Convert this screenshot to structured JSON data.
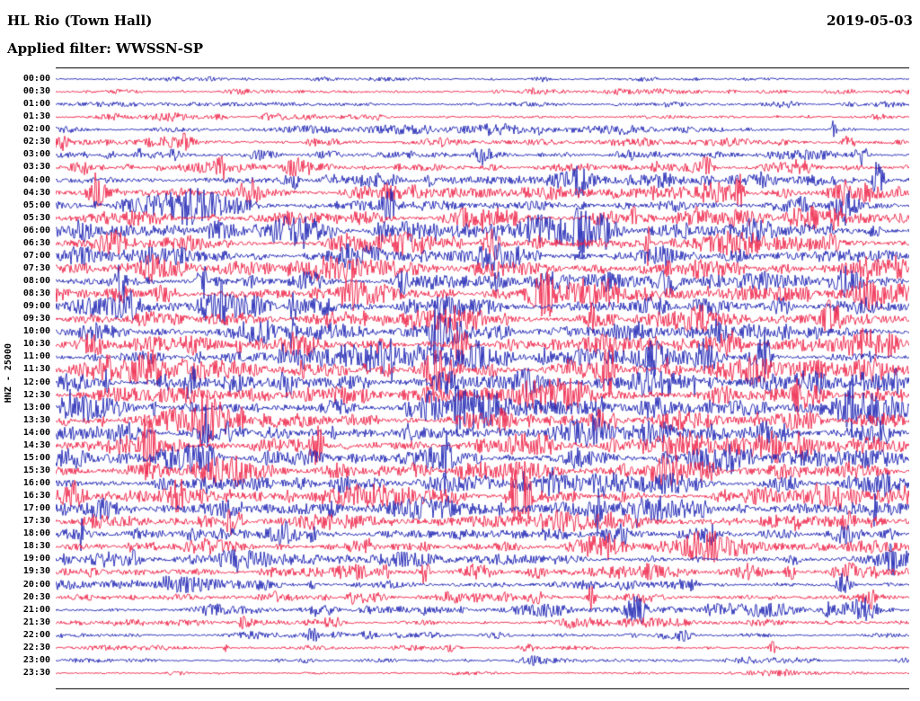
{
  "header": {
    "station_title": "HL Rio (Town Hall)",
    "date": "2019-05-03",
    "filter_label": "Applied filter: WWSSN-SP"
  },
  "axis": {
    "channel_label": "HNZ - 25000"
  },
  "colors": {
    "trace_blue": "#1d23b2",
    "trace_red": "#ee2347",
    "border": "#000000",
    "background": "#ffffff"
  },
  "chart_data": {
    "type": "line",
    "subtype": "helicorder-seismogram-drumplot",
    "title": "HL Rio (Town Hall)",
    "date": "2019-05-03",
    "filter": "WWSSN-SP",
    "channel": "HNZ",
    "scale": 25000,
    "minutes_per_row": 30,
    "row_color_cycle": [
      "blue",
      "red"
    ],
    "legend_position": "none",
    "grid": false,
    "rows": [
      {
        "time": "00:00",
        "color": "blue",
        "amplitude": 0.22
      },
      {
        "time": "00:30",
        "color": "red",
        "amplitude": 0.28
      },
      {
        "time": "01:00",
        "color": "blue",
        "amplitude": 0.3
      },
      {
        "time": "01:30",
        "color": "red",
        "amplitude": 0.32
      },
      {
        "time": "02:00",
        "color": "blue",
        "amplitude": 0.38
      },
      {
        "time": "02:30",
        "color": "red",
        "amplitude": 0.45
      },
      {
        "time": "03:00",
        "color": "blue",
        "amplitude": 0.52
      },
      {
        "time": "03:30",
        "color": "red",
        "amplitude": 0.6
      },
      {
        "time": "04:00",
        "color": "blue",
        "amplitude": 0.68
      },
      {
        "time": "04:30",
        "color": "red",
        "amplitude": 0.72
      },
      {
        "time": "05:00",
        "color": "blue",
        "amplitude": 0.78
      },
      {
        "time": "05:30",
        "color": "red",
        "amplitude": 0.85
      },
      {
        "time": "06:00",
        "color": "blue",
        "amplitude": 0.88
      },
      {
        "time": "06:30",
        "color": "red",
        "amplitude": 0.82
      },
      {
        "time": "07:00",
        "color": "blue",
        "amplitude": 0.8
      },
      {
        "time": "07:30",
        "color": "red",
        "amplitude": 0.82
      },
      {
        "time": "08:00",
        "color": "blue",
        "amplitude": 0.88
      },
      {
        "time": "08:30",
        "color": "red",
        "amplitude": 0.9
      },
      {
        "time": "09:00",
        "color": "blue",
        "amplitude": 0.88
      },
      {
        "time": "09:30",
        "color": "red",
        "amplitude": 0.85
      },
      {
        "time": "10:00",
        "color": "blue",
        "amplitude": 0.9
      },
      {
        "time": "10:30",
        "color": "red",
        "amplitude": 0.95
      },
      {
        "time": "11:00",
        "color": "blue",
        "amplitude": 0.95
      },
      {
        "time": "11:30",
        "color": "red",
        "amplitude": 0.92
      },
      {
        "time": "12:00",
        "color": "blue",
        "amplitude": 0.9
      },
      {
        "time": "12:30",
        "color": "red",
        "amplitude": 0.9
      },
      {
        "time": "13:00",
        "color": "blue",
        "amplitude": 0.92
      },
      {
        "time": "13:30",
        "color": "red",
        "amplitude": 0.95
      },
      {
        "time": "14:00",
        "color": "blue",
        "amplitude": 0.92
      },
      {
        "time": "14:30",
        "color": "red",
        "amplitude": 0.9
      },
      {
        "time": "15:00",
        "color": "blue",
        "amplitude": 0.85
      },
      {
        "time": "15:30",
        "color": "red",
        "amplitude": 0.85
      },
      {
        "time": "16:00",
        "color": "blue",
        "amplitude": 0.9
      },
      {
        "time": "16:30",
        "color": "red",
        "amplitude": 0.9
      },
      {
        "time": "17:00",
        "color": "blue",
        "amplitude": 0.82
      },
      {
        "time": "17:30",
        "color": "red",
        "amplitude": 0.75
      },
      {
        "time": "18:00",
        "color": "blue",
        "amplitude": 0.72
      },
      {
        "time": "18:30",
        "color": "red",
        "amplitude": 0.7
      },
      {
        "time": "19:00",
        "color": "blue",
        "amplitude": 0.65
      },
      {
        "time": "19:30",
        "color": "red",
        "amplitude": 0.62
      },
      {
        "time": "20:00",
        "color": "blue",
        "amplitude": 0.55
      },
      {
        "time": "20:30",
        "color": "red",
        "amplitude": 0.52
      },
      {
        "time": "21:00",
        "color": "blue",
        "amplitude": 0.55
      },
      {
        "time": "21:30",
        "color": "red",
        "amplitude": 0.42
      },
      {
        "time": "22:00",
        "color": "blue",
        "amplitude": 0.3
      },
      {
        "time": "22:30",
        "color": "red",
        "amplitude": 0.25
      },
      {
        "time": "23:00",
        "color": "blue",
        "amplitude": 0.3
      },
      {
        "time": "23:30",
        "color": "red",
        "amplitude": 0.18
      }
    ]
  }
}
